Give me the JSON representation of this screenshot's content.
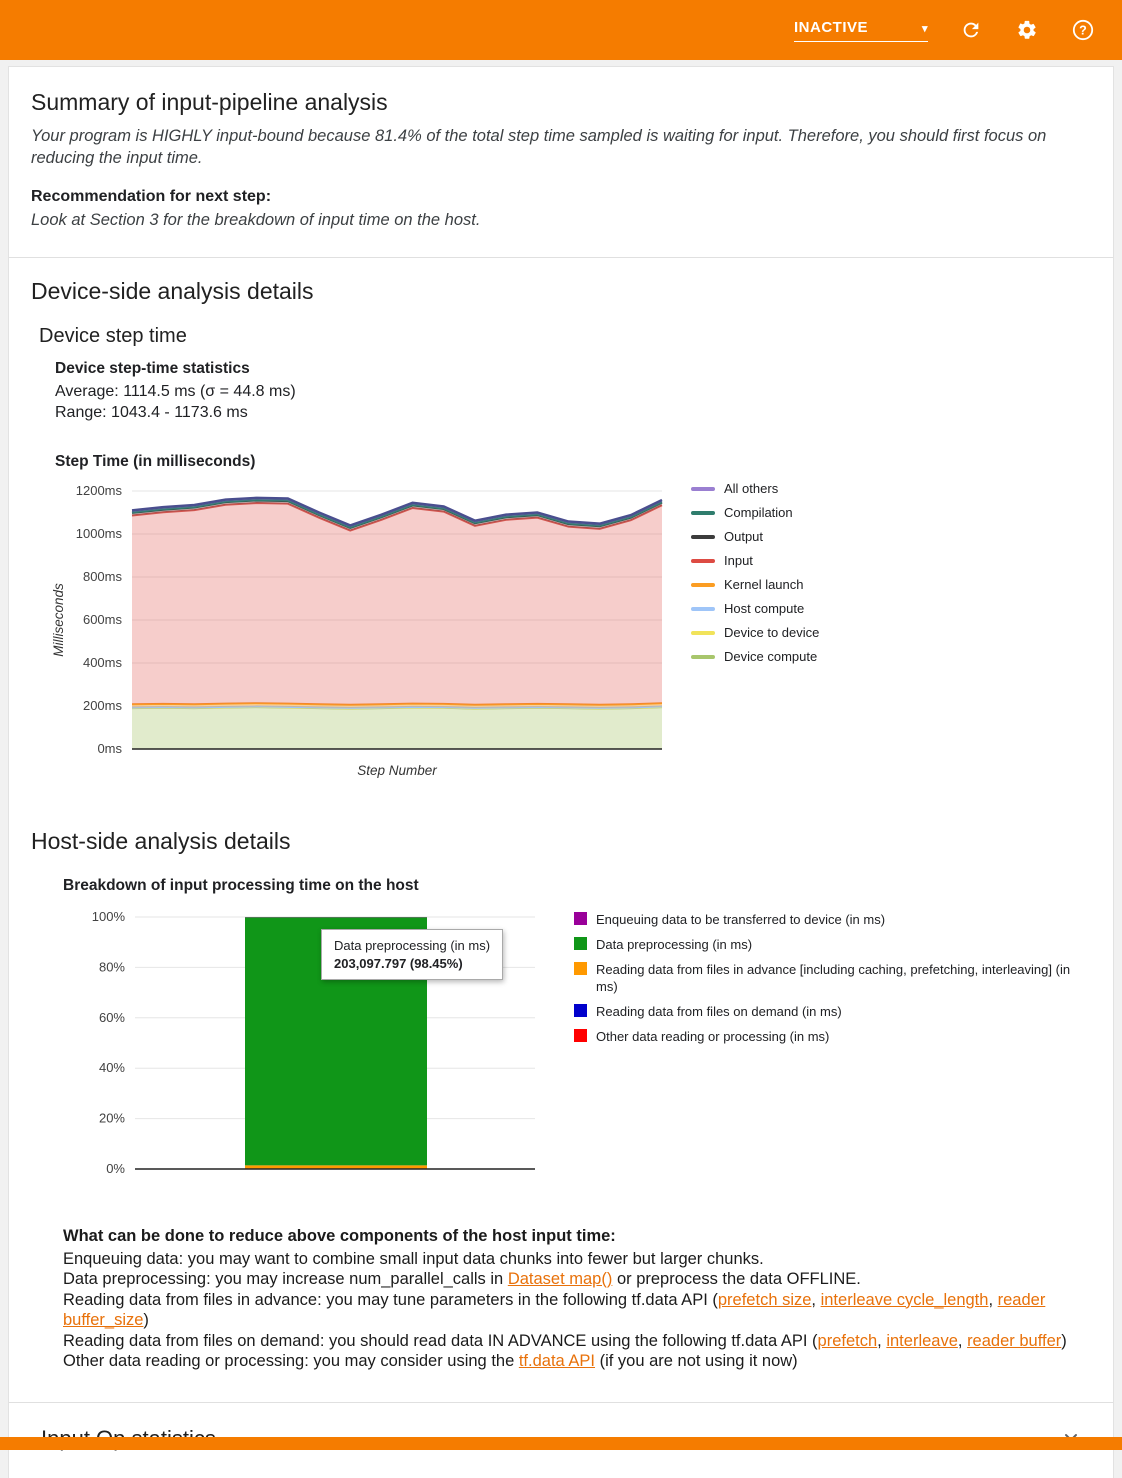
{
  "header": {
    "status_label": "INACTIVE"
  },
  "summary": {
    "title": "Summary of input-pipeline analysis",
    "body": "Your program is HIGHLY input-bound because 81.4% of the total step time sampled is waiting for input. Therefore, you should first focus on reducing the input time.",
    "recommendation_label": "Recommendation for next step:",
    "recommendation_text": "Look at Section 3 for the breakdown of input time on the host."
  },
  "device_section": {
    "title": "Device-side analysis details",
    "subtitle": "Device step time",
    "stats_heading": "Device step-time statistics",
    "stats_average": "Average: 1114.5 ms (σ = 44.8 ms)",
    "stats_range": "Range: 1043.4 - 1173.6 ms"
  },
  "host_section": {
    "title": "Host-side analysis details",
    "advice_heading": "What can be done to reduce above components of the host input time:",
    "advice_lines": [
      {
        "segments": [
          {
            "t": "Enqueuing data: you may want to combine small input data chunks into fewer but larger chunks."
          }
        ]
      },
      {
        "segments": [
          {
            "t": "Data preprocessing: you may increase num_parallel_calls in "
          },
          {
            "t": "Dataset map()",
            "link": true
          },
          {
            "t": " or preprocess the data OFFLINE."
          }
        ]
      },
      {
        "segments": [
          {
            "t": "Reading data from files in advance: you may tune parameters in the following tf.data API ("
          },
          {
            "t": "prefetch size",
            "link": true
          },
          {
            "t": ", "
          },
          {
            "t": "interleave cycle_length",
            "link": true
          },
          {
            "t": ", "
          },
          {
            "t": "reader buffer_size",
            "link": true
          },
          {
            "t": ")"
          }
        ]
      },
      {
        "segments": [
          {
            "t": "Reading data from files on demand: you should read data IN ADVANCE using the following tf.data API ("
          },
          {
            "t": "prefetch",
            "link": true
          },
          {
            "t": ", "
          },
          {
            "t": "interleave",
            "link": true
          },
          {
            "t": ", "
          },
          {
            "t": "reader buffer",
            "link": true
          },
          {
            "t": ")"
          }
        ]
      },
      {
        "segments": [
          {
            "t": "Other data reading or processing: you may consider using the "
          },
          {
            "t": "tf.data API",
            "link": true
          },
          {
            "t": " (if you are not using it now)"
          }
        ]
      }
    ]
  },
  "input_op_section": {
    "title": "Input Op statistics"
  },
  "colors": {
    "topbar": "#f57c00",
    "link": "#e8710a"
  },
  "chart_data": [
    {
      "type": "area",
      "title": "Step Time (in milliseconds)",
      "xlabel": "Step Number",
      "ylabel": "Milliseconds",
      "ylim": [
        0,
        1200
      ],
      "ytick_step": 200,
      "ytick_suffix": "ms",
      "grid": true,
      "legend_position": "right",
      "x": [
        1,
        2,
        3,
        4,
        5,
        6,
        7,
        8,
        9,
        10,
        11,
        12,
        13,
        14,
        15,
        16,
        17,
        18
      ],
      "series": [
        {
          "name": "Device compute",
          "color": "#a8c66c",
          "legend_color": "#a8c66c",
          "fill": "rgba(168,198,108,0.35)",
          "values": [
            190,
            192,
            190,
            193,
            195,
            193,
            190,
            188,
            190,
            193,
            192,
            188,
            190,
            192,
            190,
            188,
            190,
            195
          ]
        },
        {
          "name": "Device to device",
          "color": "#f1e35a",
          "legend_color": "#f1e35a",
          "fill": "rgba(241,227,90,0.45)",
          "values": [
            1,
            1,
            1,
            1,
            1,
            1,
            1,
            1,
            1,
            1,
            1,
            1,
            1,
            1,
            1,
            1,
            1,
            1
          ]
        },
        {
          "name": "Host compute",
          "color": "#9fc5f8",
          "legend_color": "#9fc5f8",
          "fill": "rgba(159,197,248,0.45)",
          "values": [
            2,
            2,
            2,
            2,
            2,
            2,
            2,
            2,
            2,
            2,
            2,
            2,
            2,
            2,
            2,
            2,
            2,
            2
          ]
        },
        {
          "name": "Kernel launch",
          "color": "#fb9d23",
          "legend_color": "#fb9d23",
          "fill": "rgba(251,157,35,0.4)",
          "values": [
            15,
            15,
            15,
            15,
            15,
            15,
            15,
            15,
            15,
            15,
            15,
            15,
            15,
            15,
            15,
            15,
            15,
            15
          ]
        },
        {
          "name": "Input",
          "color": "#d4554f",
          "legend_color": "#dd4b43",
          "fill": "rgba(221,75,67,0.28)",
          "values": [
            878,
            891,
            903,
            925,
            931,
            930,
            868,
            810,
            858,
            910,
            894,
            832,
            858,
            866,
            826,
            818,
            856,
            921
          ]
        },
        {
          "name": "Output",
          "color": "#3c3c3c",
          "legend_color": "#3c3c3c",
          "fill": "rgba(60,60,60,0.25)",
          "values": [
            12,
            12,
            12,
            12,
            12,
            12,
            12,
            12,
            12,
            12,
            12,
            12,
            12,
            12,
            12,
            12,
            12,
            12
          ]
        },
        {
          "name": "Compilation",
          "color": "#2f7d6d",
          "legend_color": "#2f7d6d",
          "fill": "rgba(47,125,109,0.3)",
          "values": [
            2,
            2,
            2,
            2,
            2,
            2,
            2,
            2,
            2,
            2,
            2,
            2,
            2,
            2,
            2,
            2,
            2,
            2
          ]
        },
        {
          "name": "All others",
          "color": "#4a4e8f",
          "legend_color": "#9a7fd1",
          "fill": "rgba(122,110,180,0.35)",
          "values": [
            10,
            10,
            10,
            10,
            10,
            10,
            10,
            10,
            10,
            10,
            10,
            10,
            10,
            10,
            10,
            10,
            10,
            10
          ]
        }
      ]
    },
    {
      "type": "bar",
      "title": "Breakdown of input processing time on the host",
      "ylim": [
        0,
        100
      ],
      "ytick_step": 20,
      "ytick_suffix": "%",
      "grid": true,
      "legend_position": "right",
      "series": [
        {
          "name": "Other data reading or processing (in ms)",
          "color": "#ff0000",
          "value": 0.1
        },
        {
          "name": "Reading data from files on demand (in ms)",
          "color": "#0000cc",
          "value": 0.1
        },
        {
          "name": "Reading data from files in advance [including caching, prefetching, interleaving] (in ms)",
          "color": "#ff9900",
          "value": 1.25
        },
        {
          "name": "Data preprocessing (in ms)",
          "color": "#109618",
          "value": 98.45
        },
        {
          "name": "Enqueuing data to be transferred to device (in ms)",
          "color": "#990099",
          "value": 0.1
        }
      ],
      "legend": [
        {
          "label": "Enqueuing data to be transferred to device (in ms)",
          "color": "#990099"
        },
        {
          "label": "Data preprocessing (in ms)",
          "color": "#109618"
        },
        {
          "label": "Reading data from files in advance [including caching, prefetching, interleaving] (in ms)",
          "color": "#ff9900"
        },
        {
          "label": "Reading data from files on demand (in ms)",
          "color": "#0000cc"
        },
        {
          "label": "Other data reading or processing (in ms)",
          "color": "#ff0000"
        }
      ],
      "tooltip": {
        "title": "Data preprocessing (in ms)",
        "value": "203,097.797 (98.45%)"
      }
    }
  ]
}
